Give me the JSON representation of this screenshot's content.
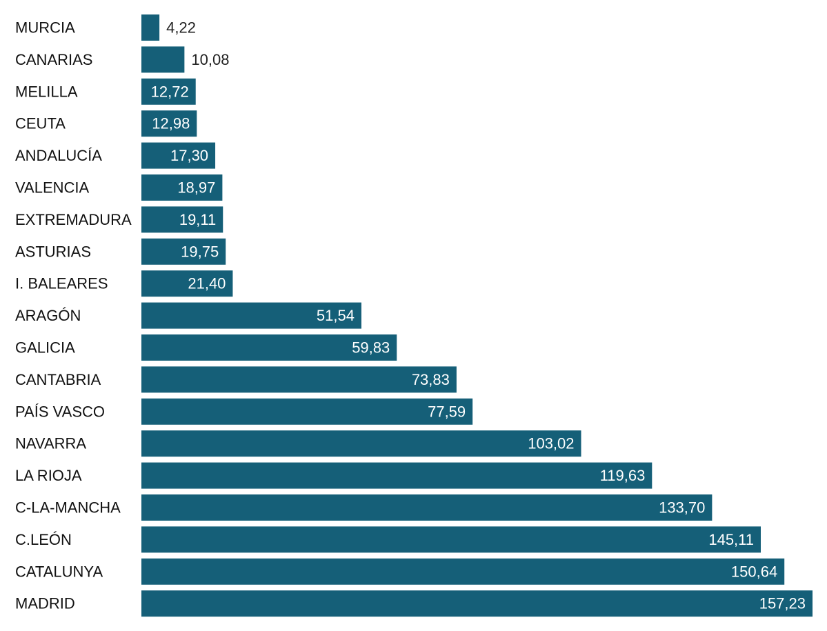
{
  "chart_data": {
    "type": "bar",
    "orientation": "horizontal",
    "title": "",
    "xlabel": "",
    "ylabel": "",
    "xlim": [
      0,
      157.23
    ],
    "grid": false,
    "legend": "none",
    "bar_color": "#155f78",
    "label_inside_color": "#ffffff",
    "label_outside_color": "#222222",
    "categories": [
      "MURCIA",
      "CANARIAS",
      "MELILLA",
      "CEUTA",
      "ANDALUCÍA",
      "VALENCIA",
      "EXTREMADURA",
      "ASTURIAS",
      "I. BALEARES",
      "ARAGÓN",
      "GALICIA",
      "CANTABRIA",
      "PAÍS VASCO",
      "NAVARRA",
      "LA RIOJA",
      "C-LA-MANCHA",
      "C.LEÓN",
      "CATALUNYA",
      "MADRID"
    ],
    "values": [
      4.22,
      10.08,
      12.72,
      12.98,
      17.3,
      18.97,
      19.11,
      19.75,
      21.4,
      51.54,
      59.83,
      73.83,
      77.59,
      103.02,
      119.63,
      133.7,
      145.11,
      150.64,
      157.23
    ],
    "value_labels": [
      "4,22",
      "10,08",
      "12,72",
      "12,98",
      "17,30",
      "18,97",
      "19,11",
      "19,75",
      "21,40",
      "51,54",
      "59,83",
      "73,83",
      "77,59",
      "103,02",
      "119,63",
      "133,70",
      "145,11",
      "150,64",
      "157,23"
    ]
  }
}
